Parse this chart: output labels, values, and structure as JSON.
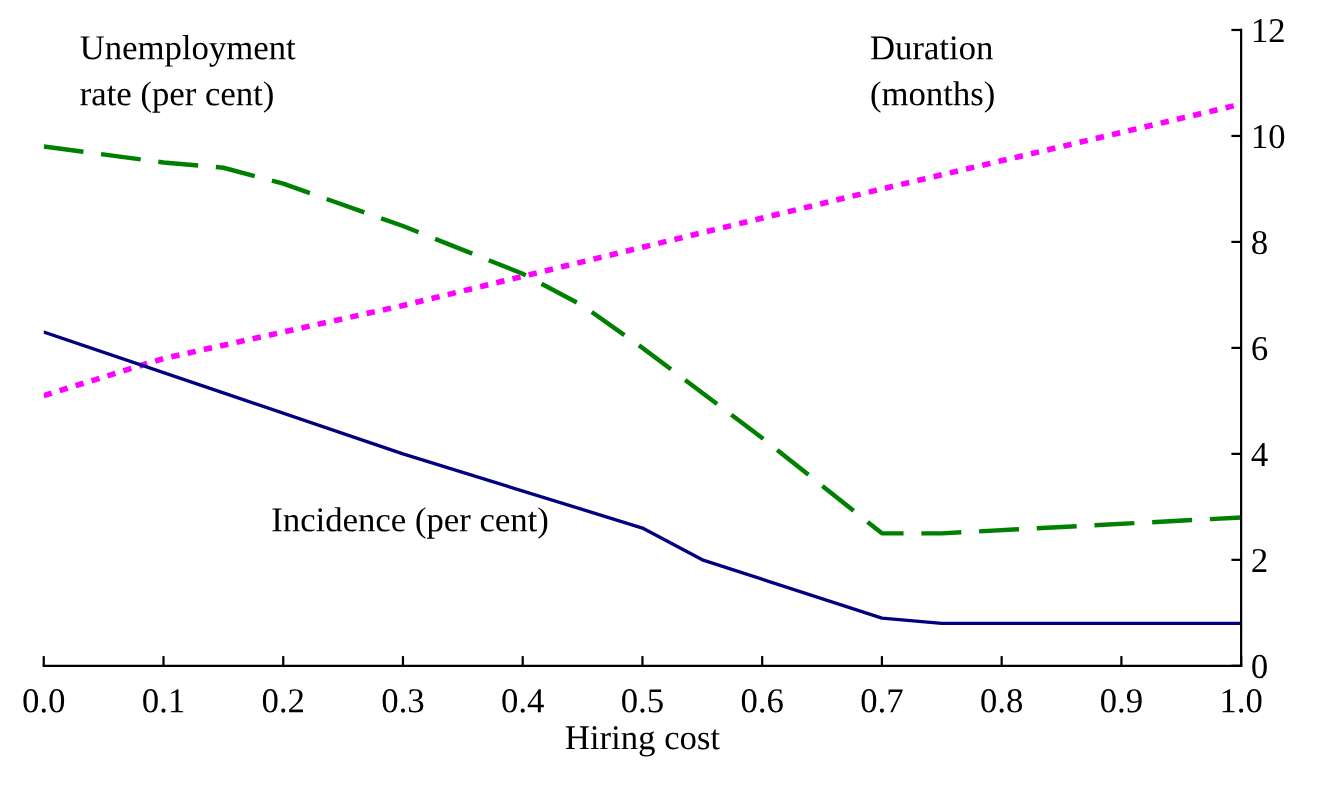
{
  "chart_data": {
    "type": "line",
    "xlabel": "Hiring cost",
    "xlim": [
      0,
      1
    ],
    "xticks": [
      {
        "value": 0,
        "label": "0.0"
      },
      {
        "value": 0.1,
        "label": "0.1"
      },
      {
        "value": 0.2,
        "label": "0.2"
      },
      {
        "value": 0.3,
        "label": "0.3"
      },
      {
        "value": 0.4,
        "label": "0.4"
      },
      {
        "value": 0.5,
        "label": "0.5"
      },
      {
        "value": 0.6,
        "label": "0.6"
      },
      {
        "value": 0.7,
        "label": "0.7"
      },
      {
        "value": 0.8,
        "label": "0.8"
      },
      {
        "value": 0.9,
        "label": "0.9"
      },
      {
        "value": 1,
        "label": "1.0"
      }
    ],
    "ylim": [
      0,
      12
    ],
    "yticks": [
      0,
      2,
      4,
      6,
      8,
      10,
      12
    ],
    "grid": false,
    "legend": false,
    "series": [
      {
        "name": "Unemployment\nrate (per cent)",
        "color": "#008000",
        "line_style": "dashed",
        "x": [
          0,
          0.1,
          0.15,
          0.2,
          0.3,
          0.4,
          0.45,
          0.5,
          0.6,
          0.7,
          0.75,
          1.0
        ],
        "values": [
          9.8,
          9.5,
          9.4,
          9.1,
          8.3,
          7.4,
          6.8,
          6.0,
          4.3,
          2.5,
          2.5,
          2.8
        ]
      },
      {
        "name": "Duration\n(months)",
        "color": "#ff00ff",
        "line_style": "dotted",
        "x": [
          0,
          0.1,
          0.3,
          0.5,
          0.7,
          1.0
        ],
        "values": [
          5.1,
          5.8,
          6.8,
          7.9,
          9.0,
          10.6
        ]
      },
      {
        "name": "Incidence (per cent)",
        "color": "#000080",
        "line_style": "solid",
        "x": [
          0,
          0.15,
          0.3,
          0.5,
          0.55,
          0.7,
          0.75,
          1.0
        ],
        "values": [
          6.3,
          5.15,
          4.0,
          2.6,
          2.0,
          0.9,
          0.8,
          0.8
        ]
      }
    ]
  }
}
